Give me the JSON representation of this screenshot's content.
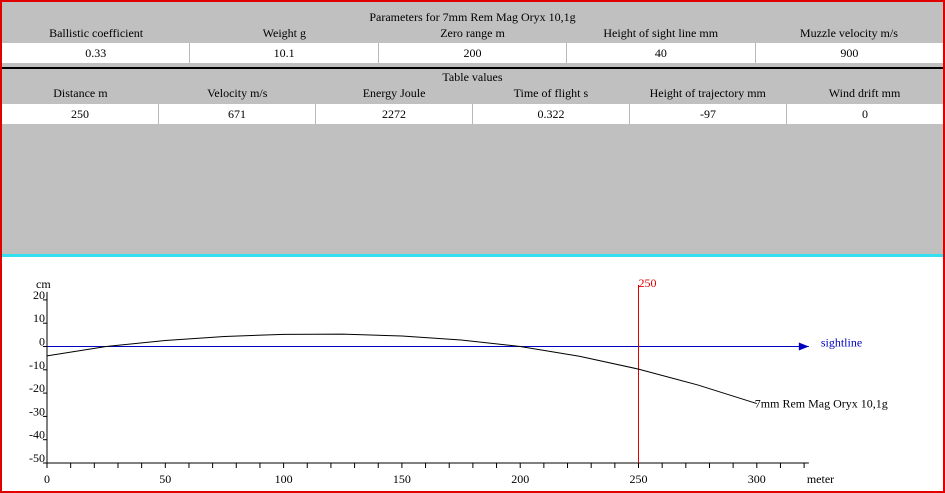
{
  "parameters": {
    "title": "Parameters for 7mm Rem Mag Oryx 10,1g",
    "headers": [
      "Ballistic coefficient",
      "Weight g",
      "Zero range m",
      "Height of sight line mm",
      "Muzzle velocity m/s"
    ],
    "values": [
      "0.33",
      "10.1",
      "200",
      "40",
      "900"
    ]
  },
  "table": {
    "title": "Table values",
    "headers": [
      "Distance m",
      "Velocity m/s",
      "Energy Joule",
      "Time of flight s",
      "Height of trajectory mm",
      "Wind drift mm"
    ],
    "values": [
      "250",
      "671",
      "2272",
      "0.322",
      "-97",
      "0"
    ]
  },
  "chart_data": {
    "type": "line",
    "ylabel": "cm",
    "xlabel": "meter",
    "xlim": [
      0,
      320
    ],
    "ylim": [
      -50,
      20
    ],
    "xticks": [
      "0",
      "50",
      "100",
      "150",
      "200",
      "250",
      "300"
    ],
    "yticks": [
      "20",
      "10",
      "0",
      "-10",
      "-20",
      "-30",
      "-40",
      "-50"
    ],
    "series": [
      {
        "name": "7mm Rem Mag Oryx 10,1g",
        "x": [
          0,
          25,
          50,
          75,
          100,
          125,
          150,
          175,
          200,
          225,
          250,
          275,
          300
        ],
        "y": [
          -4,
          0,
          2.6,
          4.3,
          5.2,
          5.3,
          4.5,
          2.8,
          0,
          -4.2,
          -9.7,
          -16.5,
          -24.5
        ]
      }
    ],
    "sightline_label": "sightline",
    "marker": {
      "x": 250,
      "label": "250"
    },
    "colors": {
      "trajectory": "#000000",
      "sightline": "#0000c0",
      "marker": "#e00000"
    }
  }
}
